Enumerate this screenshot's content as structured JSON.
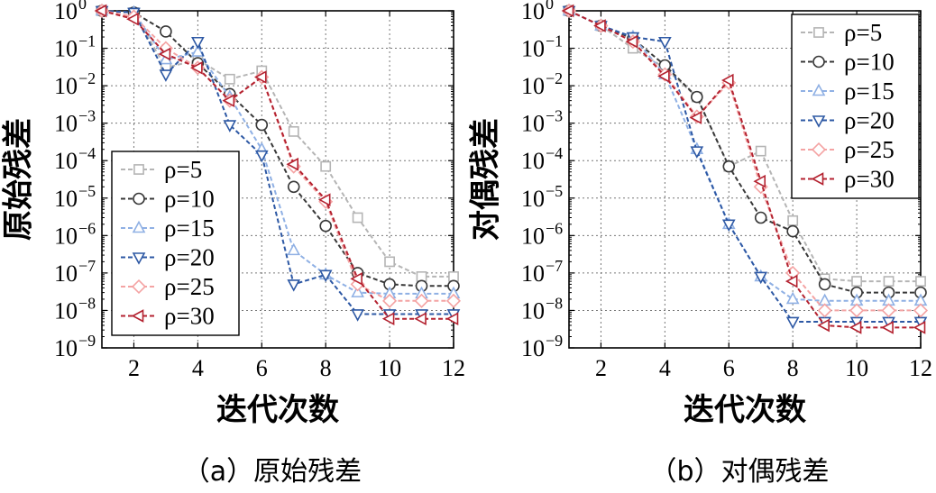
{
  "chart_data": [
    {
      "type": "line",
      "yscale": "log",
      "caption": "（a）原始残差",
      "xlabel": "迭代次数",
      "ylabel": "原始残差",
      "xlim": [
        1,
        12
      ],
      "xticks": [
        2,
        4,
        6,
        8,
        10,
        12
      ],
      "ylim": [
        1e-09,
        1
      ],
      "yticks": [
        {
          "value": 1e-09,
          "base": "10",
          "exp": "−9"
        },
        {
          "value": 1e-08,
          "base": "10",
          "exp": "−8"
        },
        {
          "value": 1e-07,
          "base": "10",
          "exp": "−7"
        },
        {
          "value": 1e-06,
          "base": "10",
          "exp": "−6"
        },
        {
          "value": 1e-05,
          "base": "10",
          "exp": "−5"
        },
        {
          "value": 0.0001,
          "base": "10",
          "exp": "−4"
        },
        {
          "value": 0.001,
          "base": "10",
          "exp": "−3"
        },
        {
          "value": 0.01,
          "base": "10",
          "exp": "−2"
        },
        {
          "value": 0.1,
          "base": "10",
          "exp": "−1"
        },
        {
          "value": 1,
          "base": "10",
          "exp": "0"
        }
      ],
      "grid": true,
      "legend_position": "lower-left",
      "x": [
        1,
        2,
        3,
        4,
        5,
        6,
        7,
        8,
        9,
        10,
        11,
        12
      ],
      "series": [
        {
          "name": "ρ=5",
          "color": "#b5b5b5",
          "marker": "square",
          "values": [
            1,
            0.9,
            0.03,
            0.05,
            0.015,
            0.025,
            0.0006,
            7e-05,
            3e-06,
            2e-07,
            8e-08,
            8e-08
          ]
        },
        {
          "name": "ρ=10",
          "color": "#383838",
          "marker": "circle",
          "values": [
            1,
            0.9,
            0.28,
            0.04,
            0.006,
            0.0009,
            2e-05,
            1.8e-06,
            1e-07,
            5e-08,
            4.5e-08,
            4.5e-08
          ]
        },
        {
          "name": "ρ=15",
          "color": "#8fb0e4",
          "marker": "triangle-up",
          "values": [
            1,
            0.9,
            0.05,
            0.08,
            0.005,
            0.0002,
            4e-07,
            9e-08,
            3e-08,
            2.8e-08,
            2.8e-08,
            2.8e-08
          ]
        },
        {
          "name": "ρ=20",
          "color": "#2d58a4",
          "marker": "triangle-down",
          "values": [
            1,
            0.9,
            0.02,
            0.15,
            0.0009,
            0.00014,
            5e-08,
            9e-08,
            8e-09,
            8e-09,
            8e-09,
            8e-09
          ]
        },
        {
          "name": "ρ=25",
          "color": "#f4a3a3",
          "marker": "diamond",
          "values": [
            1,
            0.7,
            0.1,
            0.03,
            0.004,
            0.017,
            7e-05,
            8e-06,
            5e-08,
            1.8e-08,
            1.8e-08,
            1.8e-08
          ]
        },
        {
          "name": "ρ=30",
          "color": "#b42230",
          "marker": "triangle-left",
          "values": [
            1,
            0.6,
            0.07,
            0.03,
            0.004,
            0.017,
            8e-05,
            9e-06,
            7e-08,
            6e-09,
            6e-09,
            6e-09
          ]
        }
      ]
    },
    {
      "type": "line",
      "yscale": "log",
      "caption": "（b）对偶残差",
      "xlabel": "迭代次数",
      "ylabel": "对偶残差",
      "xlim": [
        1,
        12
      ],
      "xticks": [
        2,
        4,
        6,
        8,
        10,
        12
      ],
      "ylim": [
        1e-09,
        1
      ],
      "yticks": [
        {
          "value": 1e-09,
          "base": "10",
          "exp": "−9"
        },
        {
          "value": 1e-08,
          "base": "10",
          "exp": "−8"
        },
        {
          "value": 1e-07,
          "base": "10",
          "exp": "−7"
        },
        {
          "value": 1e-06,
          "base": "10",
          "exp": "−6"
        },
        {
          "value": 1e-05,
          "base": "10",
          "exp": "−5"
        },
        {
          "value": 0.0001,
          "base": "10",
          "exp": "−4"
        },
        {
          "value": 0.001,
          "base": "10",
          "exp": "−3"
        },
        {
          "value": 0.01,
          "base": "10",
          "exp": "−2"
        },
        {
          "value": 0.1,
          "base": "10",
          "exp": "−1"
        },
        {
          "value": 1,
          "base": "10",
          "exp": "0"
        }
      ],
      "grid": true,
      "legend_position": "top-right",
      "x": [
        1,
        2,
        3,
        4,
        5,
        6,
        7,
        8,
        9,
        10,
        11,
        12
      ],
      "series": [
        {
          "name": "ρ=5",
          "color": "#b5b5b5",
          "marker": "square",
          "values": [
            1,
            0.4,
            0.1,
            0.03,
            0.005,
            7e-05,
            0.00018,
            2.5e-06,
            7e-08,
            6e-08,
            6e-08,
            6e-08
          ]
        },
        {
          "name": "ρ=10",
          "color": "#383838",
          "marker": "circle",
          "values": [
            1,
            0.4,
            0.18,
            0.035,
            0.005,
            7e-05,
            3e-06,
            1.3e-06,
            5e-08,
            3e-08,
            3e-08,
            3e-08
          ]
        },
        {
          "name": "ρ=15",
          "color": "#8fb0e4",
          "marker": "triangle-up",
          "values": [
            1,
            0.4,
            0.2,
            0.02,
            0.0002,
            2e-06,
            8e-08,
            2e-08,
            1.8e-08,
            1.8e-08,
            1.8e-08,
            1.8e-08
          ]
        },
        {
          "name": "ρ=20",
          "color": "#2d58a4",
          "marker": "triangle-down",
          "values": [
            1,
            0.4,
            0.2,
            0.15,
            0.00018,
            2e-06,
            8e-08,
            5e-09,
            5e-09,
            5e-09,
            5e-09,
            5e-09
          ]
        },
        {
          "name": "ρ=25",
          "color": "#f4a3a3",
          "marker": "diamond",
          "values": [
            1,
            0.4,
            0.15,
            0.02,
            0.0015,
            0.012,
            2e-05,
            1e-07,
            1e-08,
            1e-08,
            1e-08,
            1e-08
          ]
        },
        {
          "name": "ρ=30",
          "color": "#b42230",
          "marker": "triangle-left",
          "values": [
            1,
            0.4,
            0.15,
            0.018,
            0.0014,
            0.014,
            2.8e-05,
            6e-08,
            4e-09,
            3.5e-09,
            3.5e-09,
            3.5e-09
          ]
        }
      ]
    }
  ]
}
